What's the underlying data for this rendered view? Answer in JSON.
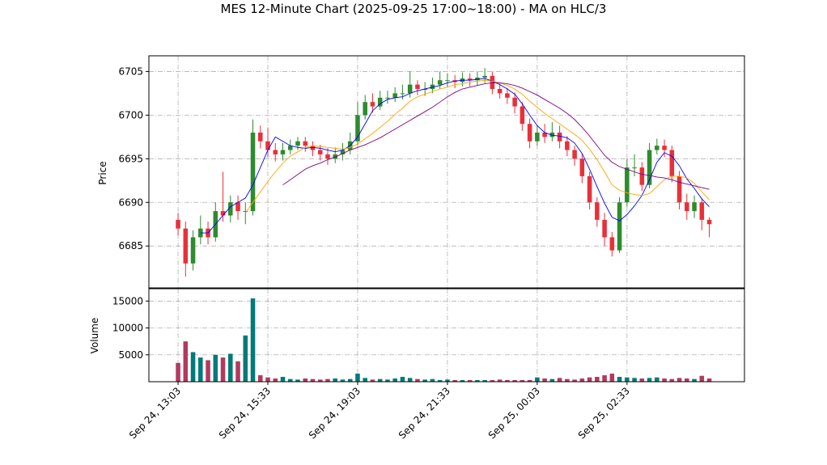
{
  "chart_data": {
    "type": "candlestick",
    "title": "MES 12-Minute Chart (2025-09-25 17:00~18:00) - MA on HLC/3",
    "ylabel": "Price",
    "xlim": [
      -3.9,
      75.7
    ],
    "xticks": [
      {
        "value": 0,
        "label": "Sep 24, 13:03"
      },
      {
        "value": 12,
        "label": "Sep 24, 15:33"
      },
      {
        "value": 24,
        "label": "Sep 24, 19:03"
      },
      {
        "value": 36,
        "label": "Sep 24, 21:33"
      },
      {
        "value": 48,
        "label": "Sep 25, 00:03"
      },
      {
        "value": 60,
        "label": "Sep 25, 02:33"
      }
    ],
    "ylim": [
      6680.2,
      6706.8
    ],
    "yticks": [
      6685,
      6690,
      6695,
      6700,
      6705
    ],
    "grid": true,
    "up_color": "#2e8b2e",
    "down_color": "#e8303a",
    "open": [
      6688,
      6687,
      6683,
      6686,
      6687,
      6686,
      6689,
      6688.5,
      6690,
      6689,
      6689,
      6698,
      6697,
      6696,
      6695.5,
      6696,
      6696.5,
      6697,
      6696.5,
      6696,
      6695.5,
      6695,
      6695.5,
      6696,
      6697,
      6700,
      6701.5,
      6701,
      6702,
      6702,
      6702.5,
      6702.5,
      6703.5,
      6703,
      6703,
      6703.5,
      6704,
      6704,
      6703.8,
      6704.2,
      6704,
      6704.3,
      6704.5,
      6703,
      6702.5,
      6702,
      6701,
      6699,
      6697,
      6698,
      6697.5,
      6698,
      6697,
      6696,
      6695,
      6693,
      6690,
      6688,
      6686,
      6684.5,
      6690,
      6694,
      6694,
      6692,
      6696,
      6696.5,
      6696,
      6693,
      6690,
      6689,
      6690,
      6688
    ],
    "high": [
      6688.8,
      6687.8,
      6686.8,
      6688.5,
      6687.8,
      6690,
      6693.5,
      6690.8,
      6690.8,
      6690,
      6699.5,
      6698.8,
      6698.5,
      6696.8,
      6696.8,
      6697.2,
      6697.5,
      6697.5,
      6697,
      6696.6,
      6696.2,
      6696.3,
      6696.8,
      6698,
      6701.5,
      6702.3,
      6702.5,
      6702.8,
      6702.8,
      6703.2,
      6703.5,
      6705,
      6704,
      6703.8,
      6704.3,
      6705,
      6704.8,
      6704.6,
      6704.9,
      6704.8,
      6705,
      6705.4,
      6705,
      6703.6,
      6703.1,
      6702.6,
      6701.5,
      6699.6,
      6698.8,
      6699,
      6699.2,
      6698.8,
      6697.6,
      6696.5,
      6695.6,
      6693.5,
      6690.6,
      6688.8,
      6686.6,
      6690.6,
      6695,
      6695.5,
      6694.6,
      6696.8,
      6697.3,
      6697.2,
      6696.5,
      6693.6,
      6691,
      6690.8,
      6690.5,
      6688.3
    ],
    "low": [
      6686.2,
      6681.5,
      6682.2,
      6685.2,
      6685.2,
      6685.5,
      6687.8,
      6687.7,
      6688,
      6687.5,
      6688.5,
      6696.2,
      6695.2,
      6694.7,
      6694.8,
      6695.5,
      6696,
      6695.8,
      6695.3,
      6694.8,
      6694.3,
      6694.5,
      6694.8,
      6695.5,
      6696.5,
      6699.5,
      6700.3,
      6700.6,
      6701.3,
      6701.5,
      6701.8,
      6702,
      6702.3,
      6702.2,
      6702.5,
      6703,
      6703.2,
      6703.1,
      6703.3,
      6703.3,
      6703.4,
      6703.7,
      6702.4,
      6701.9,
      6701.3,
      6700.2,
      6698.2,
      6696.2,
      6696.5,
      6696.8,
      6697,
      6696.2,
      6695.3,
      6694.2,
      6692.2,
      6689.2,
      6687.2,
      6685,
      6683.8,
      6684.2,
      6689.5,
      6693,
      6691.3,
      6691.6,
      6695.5,
      6695.2,
      6692.3,
      6689.2,
      6688,
      6688.2,
      6686.8,
      6686
    ],
    "close": [
      6687,
      6683,
      6686,
      6687,
      6686,
      6689,
      6688.5,
      6690,
      6689,
      6689,
      6698,
      6697,
      6696,
      6695.5,
      6696,
      6696.5,
      6697,
      6696.5,
      6696,
      6695.5,
      6695,
      6695.5,
      6696,
      6697,
      6700,
      6701.5,
      6701,
      6702,
      6702,
      6702.5,
      6702.5,
      6703.5,
      6703,
      6703,
      6703.5,
      6704,
      6704,
      6703.8,
      6704.2,
      6704,
      6704.3,
      6704.5,
      6703,
      6702.5,
      6702,
      6701,
      6699,
      6697,
      6698,
      6697.5,
      6698,
      6697,
      6696,
      6695,
      6693,
      6690,
      6688,
      6686,
      6684.5,
      6690,
      6694,
      6694,
      6692,
      6696,
      6696.5,
      6696,
      6693,
      6690,
      6689,
      6690,
      6688,
      6687.5
    ],
    "moving_averages": [
      {
        "color": "#0000ff",
        "values": [
          null,
          null,
          null,
          6686.5,
          6686.5,
          6687.5,
          6688.5,
          6689.5,
          6690,
          6690.5,
          6692,
          6694,
          6696,
          6697.5,
          6697,
          6696.5,
          6696.3,
          6696.2,
          6696.3,
          6696.2,
          6696,
          6695.8,
          6696,
          6696.5,
          6697.5,
          6699,
          6700.5,
          6701.3,
          6701.8,
          6702,
          6702.1,
          6702.5,
          6702.8,
          6703,
          6703.2,
          6703.4,
          6703.7,
          6703.9,
          6704,
          6704,
          6704.1,
          6704.2,
          6703.9,
          6703.5,
          6703,
          6702.4,
          6701.3,
          6700,
          6698.8,
          6698,
          6697.7,
          6697.6,
          6697.4,
          6696.8,
          6695.6,
          6693.8,
          6691.8,
          6689.9,
          6688.3,
          6687.9,
          6688.6,
          6689.6,
          6690.8,
          6692.6,
          6694.6,
          6695.7,
          6695.3,
          6694.2,
          6692.7,
          6691.6,
          6690.4,
          6689.5
        ]
      },
      {
        "color": "#ffa500",
        "values": [
          null,
          null,
          null,
          null,
          null,
          null,
          null,
          null,
          null,
          6688.8,
          6690,
          6691.2,
          6692.4,
          6693.5,
          6694.5,
          6695.3,
          6695.8,
          6696.3,
          6696.5,
          6696.4,
          6696.3,
          6696.2,
          6696.1,
          6696.3,
          6696.7,
          6697.3,
          6697.9,
          6698.6,
          6699.3,
          6700.1,
          6700.8,
          6701.6,
          6702.1,
          6702.4,
          6702.7,
          6703,
          6703.2,
          6703.5,
          6703.6,
          6703.8,
          6703.9,
          6704,
          6703.9,
          6703.7,
          6703.4,
          6703,
          6702.4,
          6701.6,
          6700.9,
          6700.2,
          6699.6,
          6699,
          6698.4,
          6697.8,
          6697.1,
          6696.1,
          6694.9,
          6693.5,
          6692,
          6691.4,
          6691.1,
          6690.9,
          6690.8,
          6691,
          6691.8,
          6692.6,
          6693,
          6693,
          6692.8,
          6692.2,
          6691.2,
          6690.3
        ]
      },
      {
        "color": "#800080",
        "values": [
          null,
          null,
          null,
          null,
          null,
          null,
          null,
          null,
          null,
          null,
          null,
          null,
          null,
          null,
          6692,
          6692.6,
          6693.2,
          6693.8,
          6694.2,
          6694.5,
          6694.9,
          6695.2,
          6695.6,
          6696,
          6696.3,
          6696.6,
          6697,
          6697.4,
          6697.9,
          6698.4,
          6698.9,
          6699.4,
          6699.9,
          6700.4,
          6700.9,
          6701.5,
          6702.1,
          6702.6,
          6703,
          6703.2,
          6703.4,
          6703.6,
          6703.7,
          6703.7,
          6703.6,
          6703.4,
          6703.1,
          6702.7,
          6702.3,
          6701.8,
          6701.3,
          6700.8,
          6700.2,
          6699.5,
          6698.6,
          6697.6,
          6696.5,
          6695.4,
          6694.6,
          6694.1,
          6693.8,
          6693.5,
          6693.2,
          6693.1,
          6692.9,
          6692.8,
          6692.6,
          6692.3,
          6692.1,
          6691.9,
          6691.7,
          6691.5
        ]
      }
    ],
    "volume": {
      "label": "Volume",
      "ylim": [
        0,
        17300
      ],
      "yticks": [
        5000,
        10000,
        15000
      ],
      "up_color": "#007a7a",
      "down_color": "#b23a5e",
      "values": [
        3500,
        7500,
        5500,
        4500,
        4000,
        5000,
        4500,
        5200,
        3800,
        8600,
        15500,
        1200,
        800,
        600,
        900,
        500,
        400,
        600,
        500,
        400,
        500,
        600,
        400,
        500,
        1500,
        700,
        400,
        500,
        400,
        600,
        900,
        700,
        500,
        400,
        500,
        300,
        400,
        300,
        300,
        300,
        300,
        300,
        300,
        400,
        300,
        300,
        300,
        300,
        800,
        600,
        500,
        700,
        500,
        400,
        600,
        800,
        900,
        1200,
        1500,
        900,
        800,
        700,
        600,
        700,
        800,
        600,
        500,
        700,
        600,
        500,
        1100,
        600
      ]
    }
  }
}
